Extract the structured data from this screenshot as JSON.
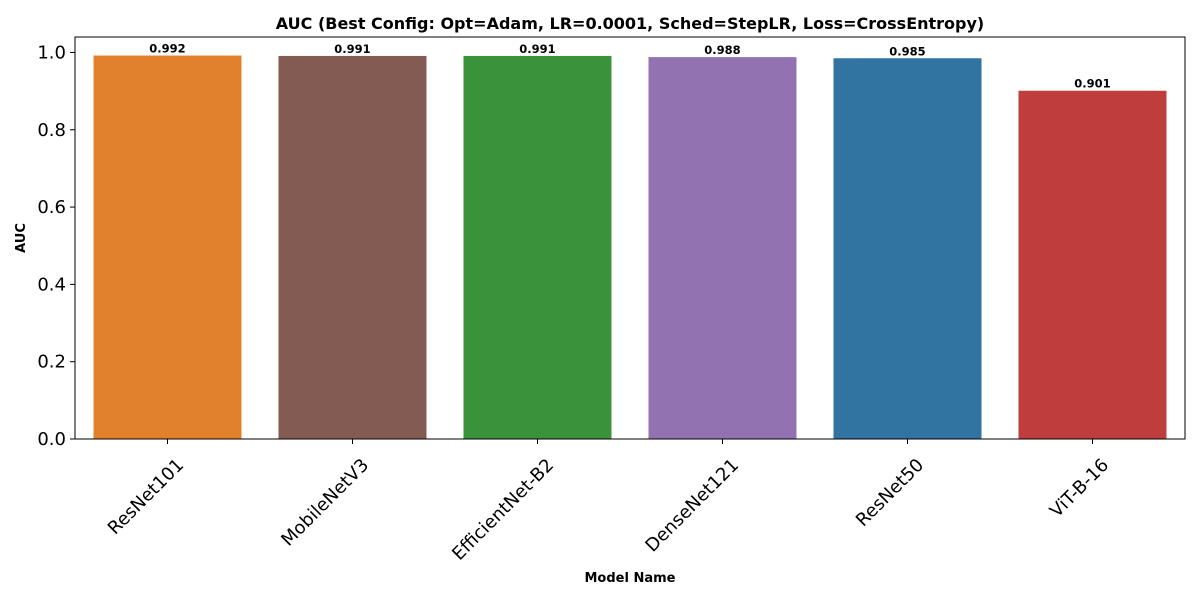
{
  "chart_data": {
    "type": "bar",
    "title": "AUC (Best Config: Opt=Adam, LR=0.0001, Sched=StepLR, Loss=CrossEntropy)",
    "xlabel": "Model Name",
    "ylabel": "AUC",
    "categories": [
      "ResNet101",
      "MobileNetV3",
      "EfficientNet-B2",
      "DenseNet121",
      "ResNet50",
      "ViT-B-16"
    ],
    "values": [
      0.992,
      0.991,
      0.991,
      0.988,
      0.985,
      0.901
    ],
    "value_labels": [
      "0.992",
      "0.991",
      "0.991",
      "0.988",
      "0.985",
      "0.901"
    ],
    "colors": [
      "#e1812c",
      "#845b53",
      "#3a923a",
      "#9372b2",
      "#3274a1",
      "#c03d3e"
    ],
    "ylim": [
      0,
      1.04
    ],
    "yticks": [
      0.0,
      0.2,
      0.4,
      0.6,
      0.8,
      1.0
    ],
    "ytick_labels": [
      "0.0",
      "0.2",
      "0.4",
      "0.6",
      "0.8",
      "1.0"
    ],
    "xtick_rotation": 45,
    "grid": false,
    "legend": "none"
  }
}
